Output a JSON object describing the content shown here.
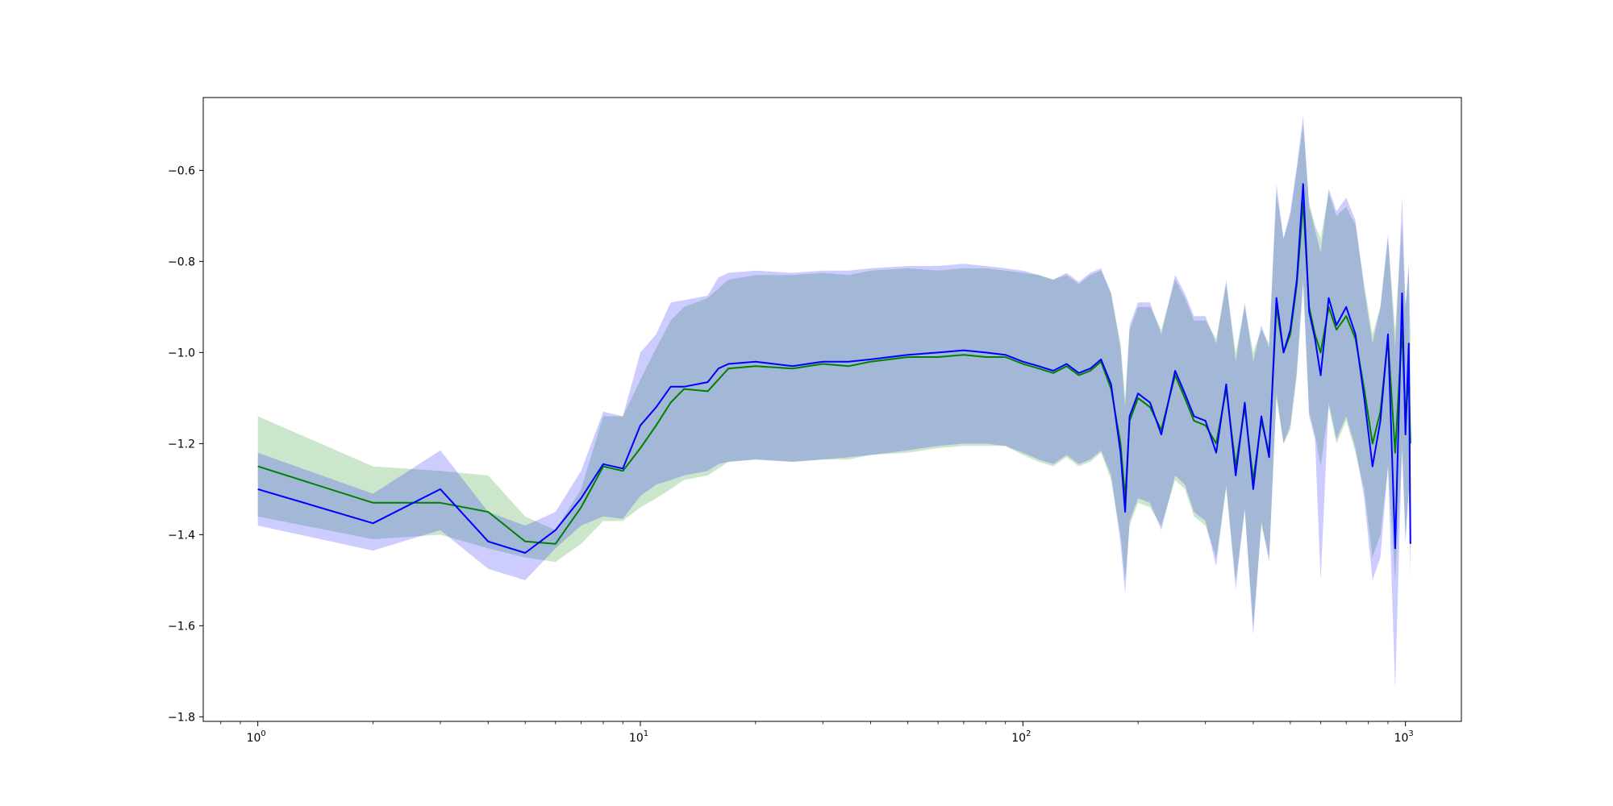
{
  "chart_data": {
    "type": "line",
    "title": "",
    "xlabel": "",
    "ylabel": "",
    "x_scale": "log",
    "xlim": [
      0.72,
      1400
    ],
    "ylim": [
      -1.81,
      -0.44
    ],
    "grid": false,
    "legend": "none",
    "x_ticks": [
      {
        "base": "10",
        "exp": "0",
        "value": 1
      },
      {
        "base": "10",
        "exp": "1",
        "value": 10
      },
      {
        "base": "10",
        "exp": "2",
        "value": 100
      },
      {
        "base": "10",
        "exp": "3",
        "value": 1000
      }
    ],
    "y_ticks": [
      {
        "label": "−0.6",
        "value": -0.6
      },
      {
        "label": "−0.8",
        "value": -0.8
      },
      {
        "label": "−1.0",
        "value": -1.0
      },
      {
        "label": "−1.2",
        "value": -1.2
      },
      {
        "label": "−1.4",
        "value": -1.4
      },
      {
        "label": "−1.6",
        "value": -1.6
      },
      {
        "label": "−1.8",
        "value": -1.8
      }
    ],
    "series": [
      {
        "color": "#008000",
        "band_color": "#008000",
        "band_opacity": 0.2,
        "points": [
          [
            1,
            -1.25,
            -1.14,
            -1.36
          ],
          [
            2,
            -1.33,
            -1.25,
            -1.41
          ],
          [
            3,
            -1.33,
            -1.26,
            -1.4
          ],
          [
            4,
            -1.35,
            -1.27,
            -1.43
          ],
          [
            5,
            -1.415,
            -1.36,
            -1.45
          ],
          [
            6,
            -1.42,
            -1.39,
            -1.46
          ],
          [
            7,
            -1.34,
            -1.3,
            -1.42
          ],
          [
            8,
            -1.25,
            -1.14,
            -1.37
          ],
          [
            9,
            -1.26,
            -1.14,
            -1.37
          ],
          [
            10,
            -1.21,
            -1.06,
            -1.34
          ],
          [
            11,
            -1.16,
            -0.99,
            -1.32
          ],
          [
            12,
            -1.11,
            -0.93,
            -1.3
          ],
          [
            13,
            -1.08,
            -0.9,
            -1.28
          ],
          [
            15,
            -1.085,
            -0.88,
            -1.27
          ],
          [
            17,
            -1.035,
            -0.84,
            -1.24
          ],
          [
            20,
            -1.03,
            -0.83,
            -1.235
          ],
          [
            25,
            -1.035,
            -0.83,
            -1.24
          ],
          [
            30,
            -1.025,
            -0.825,
            -1.235
          ],
          [
            35,
            -1.03,
            -0.83,
            -1.235
          ],
          [
            40,
            -1.02,
            -0.82,
            -1.225
          ],
          [
            50,
            -1.01,
            -0.815,
            -1.22
          ],
          [
            60,
            -1.01,
            -0.82,
            -1.21
          ],
          [
            70,
            -1.005,
            -0.815,
            -1.205
          ],
          [
            80,
            -1.01,
            -0.815,
            -1.205
          ],
          [
            90,
            -1.01,
            -0.82,
            -1.205
          ],
          [
            100,
            -1.025,
            -0.825,
            -1.225
          ],
          [
            110,
            -1.035,
            -0.83,
            -1.24
          ],
          [
            120,
            -1.045,
            -0.84,
            -1.25
          ],
          [
            130,
            -1.03,
            -0.83,
            -1.23
          ],
          [
            140,
            -1.05,
            -0.85,
            -1.25
          ],
          [
            150,
            -1.04,
            -0.83,
            -1.24
          ],
          [
            160,
            -1.02,
            -0.82,
            -1.22
          ],
          [
            170,
            -1.08,
            -0.87,
            -1.28
          ],
          [
            180,
            -1.2,
            -0.98,
            -1.4
          ],
          [
            185,
            -1.32,
            -1.1,
            -1.5
          ],
          [
            190,
            -1.15,
            -0.95,
            -1.38
          ],
          [
            200,
            -1.1,
            -0.9,
            -1.33
          ],
          [
            215,
            -1.12,
            -0.9,
            -1.34
          ],
          [
            230,
            -1.17,
            -0.95,
            -1.38
          ],
          [
            250,
            -1.05,
            -0.84,
            -1.28
          ],
          [
            265,
            -1.1,
            -0.88,
            -1.3
          ],
          [
            280,
            -1.15,
            -0.93,
            -1.36
          ],
          [
            300,
            -1.16,
            -0.93,
            -1.38
          ],
          [
            320,
            -1.2,
            -0.97,
            -1.45
          ],
          [
            340,
            -1.08,
            -0.85,
            -1.3
          ],
          [
            360,
            -1.25,
            -1.0,
            -1.5
          ],
          [
            380,
            -1.12,
            -0.9,
            -1.35
          ],
          [
            400,
            -1.28,
            -1.0,
            -1.6
          ],
          [
            420,
            -1.15,
            -0.95,
            -1.38
          ],
          [
            440,
            -1.22,
            -0.98,
            -1.45
          ],
          [
            460,
            -0.9,
            -0.65,
            -1.1
          ],
          [
            480,
            -1.0,
            -0.75,
            -1.2
          ],
          [
            500,
            -0.96,
            -0.7,
            -1.17
          ],
          [
            520,
            -0.85,
            -0.6,
            -1.05
          ],
          [
            540,
            -0.67,
            -0.5,
            -0.85
          ],
          [
            560,
            -0.9,
            -0.67,
            -1.13
          ],
          [
            580,
            -0.96,
            -0.72,
            -1.18
          ],
          [
            600,
            -1.0,
            -0.75,
            -1.25
          ],
          [
            630,
            -0.9,
            -0.65,
            -1.12
          ],
          [
            660,
            -0.95,
            -0.7,
            -1.2
          ],
          [
            700,
            -0.92,
            -0.68,
            -1.15
          ],
          [
            740,
            -0.97,
            -0.72,
            -1.22
          ],
          [
            780,
            -1.08,
            -0.85,
            -1.3
          ],
          [
            820,
            -1.2,
            -0.96,
            -1.45
          ],
          [
            860,
            -1.13,
            -0.9,
            -1.4
          ],
          [
            900,
            -0.97,
            -0.75,
            -1.25
          ],
          [
            940,
            -1.22,
            -0.95,
            -1.5
          ],
          [
            980,
            -0.95,
            -0.72,
            -1.22
          ],
          [
            1000,
            -1.15,
            -0.9,
            -1.4
          ],
          [
            1020,
            -1.05,
            -0.82,
            -1.3
          ],
          [
            1030,
            -1.2,
            -0.95,
            -1.45
          ]
        ]
      },
      {
        "color": "#0000ff",
        "band_color": "#0000ff",
        "band_opacity": 0.2,
        "points": [
          [
            1,
            -1.3,
            -1.22,
            -1.38
          ],
          [
            2,
            -1.375,
            -1.31,
            -1.435
          ],
          [
            3,
            -1.3,
            -1.215,
            -1.39
          ],
          [
            4,
            -1.415,
            -1.35,
            -1.475
          ],
          [
            5,
            -1.44,
            -1.38,
            -1.5
          ],
          [
            6,
            -1.39,
            -1.35,
            -1.43
          ],
          [
            7,
            -1.32,
            -1.26,
            -1.38
          ],
          [
            8,
            -1.245,
            -1.13,
            -1.36
          ],
          [
            9,
            -1.255,
            -1.14,
            -1.365
          ],
          [
            10,
            -1.16,
            -1.0,
            -1.315
          ],
          [
            11,
            -1.12,
            -0.96,
            -1.29
          ],
          [
            12,
            -1.075,
            -0.89,
            -1.28
          ],
          [
            13,
            -1.075,
            -0.885,
            -1.27
          ],
          [
            15,
            -1.065,
            -0.875,
            -1.26
          ],
          [
            16,
            -1.035,
            -0.835,
            -1.245
          ],
          [
            17,
            -1.025,
            -0.825,
            -1.24
          ],
          [
            20,
            -1.02,
            -0.82,
            -1.235
          ],
          [
            25,
            -1.03,
            -0.825,
            -1.24
          ],
          [
            30,
            -1.02,
            -0.82,
            -1.235
          ],
          [
            35,
            -1.02,
            -0.82,
            -1.23
          ],
          [
            40,
            -1.015,
            -0.815,
            -1.225
          ],
          [
            50,
            -1.005,
            -0.81,
            -1.215
          ],
          [
            60,
            -1.0,
            -0.81,
            -1.205
          ],
          [
            70,
            -0.995,
            -0.805,
            -1.2
          ],
          [
            80,
            -1.0,
            -0.81,
            -1.2
          ],
          [
            90,
            -1.005,
            -0.815,
            -1.205
          ],
          [
            100,
            -1.02,
            -0.82,
            -1.22
          ],
          [
            110,
            -1.03,
            -0.83,
            -1.235
          ],
          [
            120,
            -1.04,
            -0.84,
            -1.245
          ],
          [
            130,
            -1.025,
            -0.825,
            -1.225
          ],
          [
            140,
            -1.045,
            -0.845,
            -1.245
          ],
          [
            150,
            -1.035,
            -0.825,
            -1.235
          ],
          [
            160,
            -1.015,
            -0.815,
            -1.215
          ],
          [
            170,
            -1.07,
            -0.87,
            -1.27
          ],
          [
            180,
            -1.22,
            -0.99,
            -1.42
          ],
          [
            185,
            -1.35,
            -1.12,
            -1.53
          ],
          [
            190,
            -1.14,
            -0.94,
            -1.37
          ],
          [
            200,
            -1.09,
            -0.89,
            -1.32
          ],
          [
            215,
            -1.11,
            -0.89,
            -1.33
          ],
          [
            230,
            -1.18,
            -0.96,
            -1.39
          ],
          [
            250,
            -1.04,
            -0.83,
            -1.27
          ],
          [
            265,
            -1.09,
            -0.87,
            -1.29
          ],
          [
            280,
            -1.14,
            -0.92,
            -1.35
          ],
          [
            300,
            -1.15,
            -0.92,
            -1.37
          ],
          [
            320,
            -1.22,
            -0.98,
            -1.47
          ],
          [
            340,
            -1.07,
            -0.84,
            -1.29
          ],
          [
            360,
            -1.27,
            -1.02,
            -1.52
          ],
          [
            380,
            -1.11,
            -0.89,
            -1.34
          ],
          [
            400,
            -1.3,
            -1.02,
            -1.62
          ],
          [
            420,
            -1.14,
            -0.94,
            -1.37
          ],
          [
            440,
            -1.23,
            -0.99,
            -1.46
          ],
          [
            460,
            -0.88,
            -0.63,
            -1.09
          ],
          [
            480,
            -1.0,
            -0.75,
            -1.2
          ],
          [
            500,
            -0.95,
            -0.69,
            -1.16
          ],
          [
            520,
            -0.84,
            -0.59,
            -1.04
          ],
          [
            540,
            -0.63,
            -0.48,
            -0.84
          ],
          [
            560,
            -0.91,
            -0.68,
            -1.14
          ],
          [
            580,
            -0.97,
            -0.73,
            -1.19
          ],
          [
            600,
            -1.05,
            -0.78,
            -1.5
          ],
          [
            630,
            -0.88,
            -0.64,
            -1.11
          ],
          [
            660,
            -0.94,
            -0.69,
            -1.19
          ],
          [
            700,
            -0.9,
            -0.66,
            -1.14
          ],
          [
            740,
            -0.96,
            -0.71,
            -1.21
          ],
          [
            780,
            -1.1,
            -0.86,
            -1.32
          ],
          [
            820,
            -1.25,
            -0.98,
            -1.5
          ],
          [
            860,
            -1.15,
            -0.9,
            -1.45
          ],
          [
            900,
            -0.96,
            -0.74,
            -1.25
          ],
          [
            940,
            -1.43,
            -0.99,
            -1.74
          ],
          [
            980,
            -0.87,
            -0.66,
            -1.2
          ],
          [
            1000,
            -1.18,
            -0.9,
            -1.42
          ],
          [
            1020,
            -0.98,
            -0.8,
            -1.3
          ],
          [
            1030,
            -1.42,
            -1.15,
            -1.5
          ]
        ]
      }
    ]
  }
}
